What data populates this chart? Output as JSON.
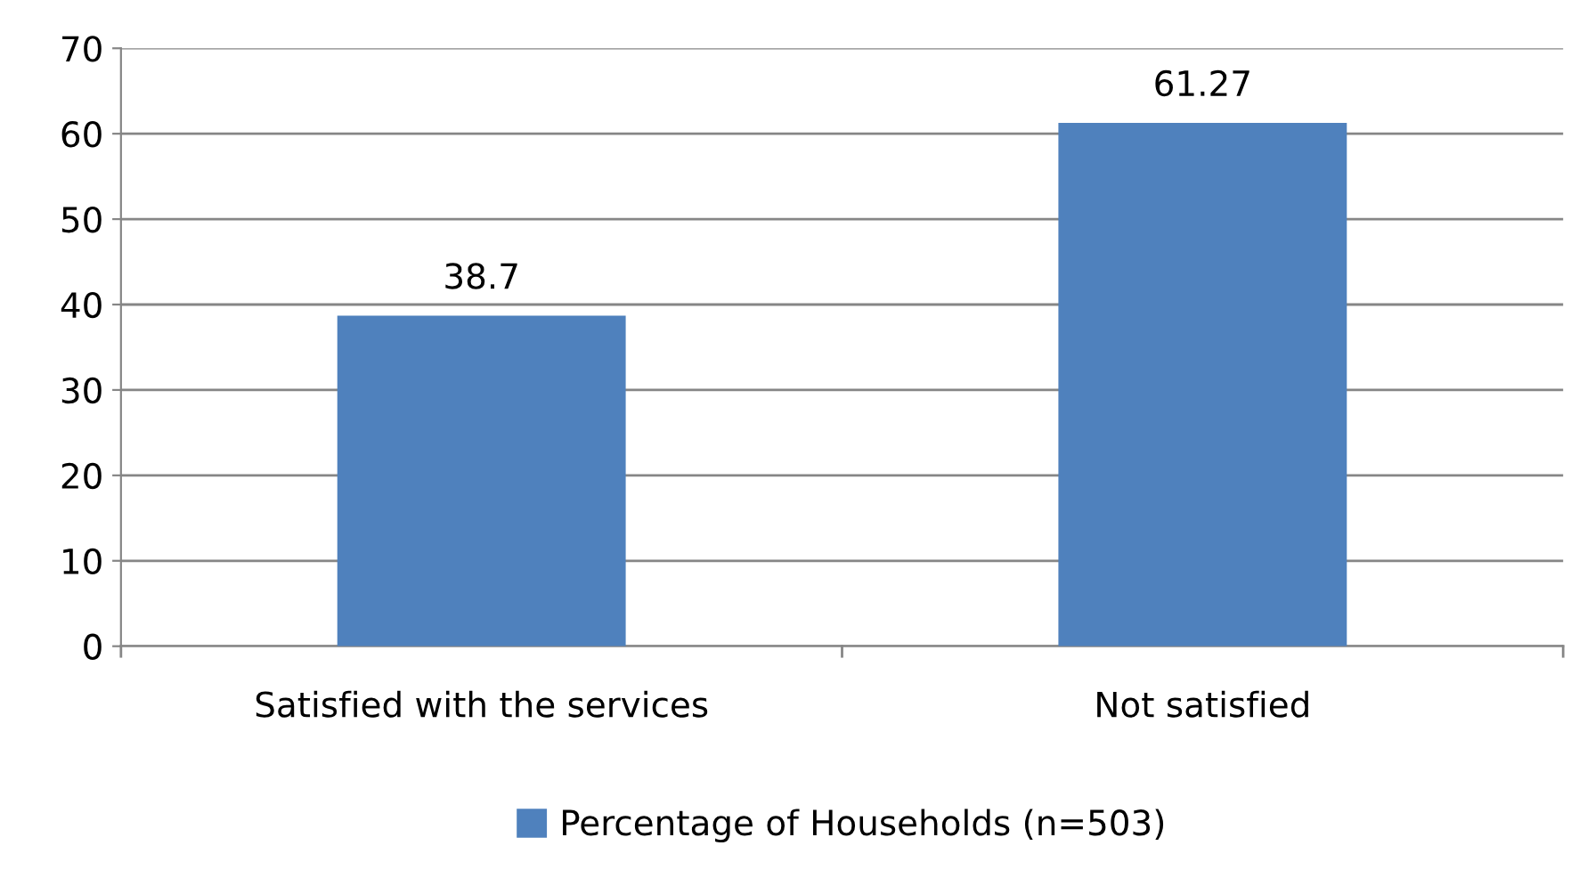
{
  "chart_data": {
    "type": "bar",
    "categories": [
      "Satisfied with the services",
      "Not satisfied"
    ],
    "series": [
      {
        "name": "Percentage of Households (n=503)",
        "color": "#4f81bd",
        "values": [
          38.7,
          61.27
        ]
      }
    ],
    "ylim": [
      0,
      70
    ],
    "yticks": [
      0,
      10,
      20,
      30,
      40,
      50,
      60,
      70
    ],
    "grid": "y",
    "legend": "bottom",
    "data_labels": true
  }
}
